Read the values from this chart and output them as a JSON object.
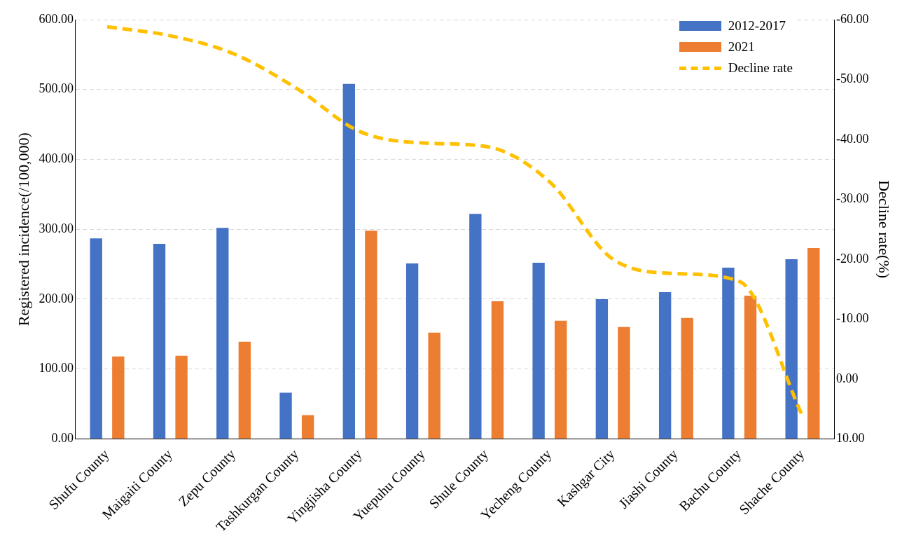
{
  "chart_data": {
    "type": "bar",
    "ylabel": "Registered incidence(/100,000)",
    "y2label": "Decline rate(%)",
    "categories": [
      "Shufu County",
      "Maigaiti County",
      "Zepu County",
      "Tashkurgan County",
      "Yingjisha County",
      "Yuepuhu County",
      "Shule County",
      "Yecheng County",
      "Kashgar City",
      "Jiashi County",
      "Bachu County",
      "Shache County"
    ],
    "series": [
      {
        "name": "2012-2017",
        "color": "#4472c4",
        "values": [
          287,
          279,
          302,
          66,
          508,
          251,
          322,
          252,
          200,
          210,
          245,
          257
        ]
      },
      {
        "name": "2021",
        "color": "#ed7d31",
        "values": [
          118,
          119,
          139,
          34,
          298,
          152,
          197,
          169,
          160,
          173,
          205,
          273
        ]
      },
      {
        "name": "Decline rate",
        "type": "line",
        "axis": "y2",
        "color": "#ffc000",
        "line_style": "dashed",
        "marker": "none",
        "values": [
          -58.8,
          -57.3,
          -54.3,
          -48.5,
          -41.3,
          -39.4,
          -38.8,
          -32.9,
          -20,
          -17.6,
          -16.3,
          6.2
        ]
      }
    ],
    "ylim": [
      0,
      600
    ],
    "yticks": [
      {
        "value": 0,
        "label": "0.00"
      },
      {
        "value": 100,
        "label": "100.00"
      },
      {
        "value": 200,
        "label": "200.00"
      },
      {
        "value": 300,
        "label": "300.00"
      },
      {
        "value": 400,
        "label": "400.00"
      },
      {
        "value": 500,
        "label": "500.00"
      },
      {
        "value": 600,
        "label": "600.00"
      }
    ],
    "y2lim": [
      10,
      -60
    ],
    "y2ticks": [
      {
        "value": 10,
        "label": "10.00"
      },
      {
        "value": 0,
        "label": "0.00"
      },
      {
        "value": -10,
        "label": "-10.00"
      },
      {
        "value": -20,
        "label": "-20.00"
      },
      {
        "value": -30,
        "label": "-30.00"
      },
      {
        "value": -40,
        "label": "-40.00"
      },
      {
        "value": -50,
        "label": "-50.00"
      },
      {
        "value": -60,
        "label": "-60.00"
      }
    ],
    "grid": "y",
    "legend": "top right"
  }
}
